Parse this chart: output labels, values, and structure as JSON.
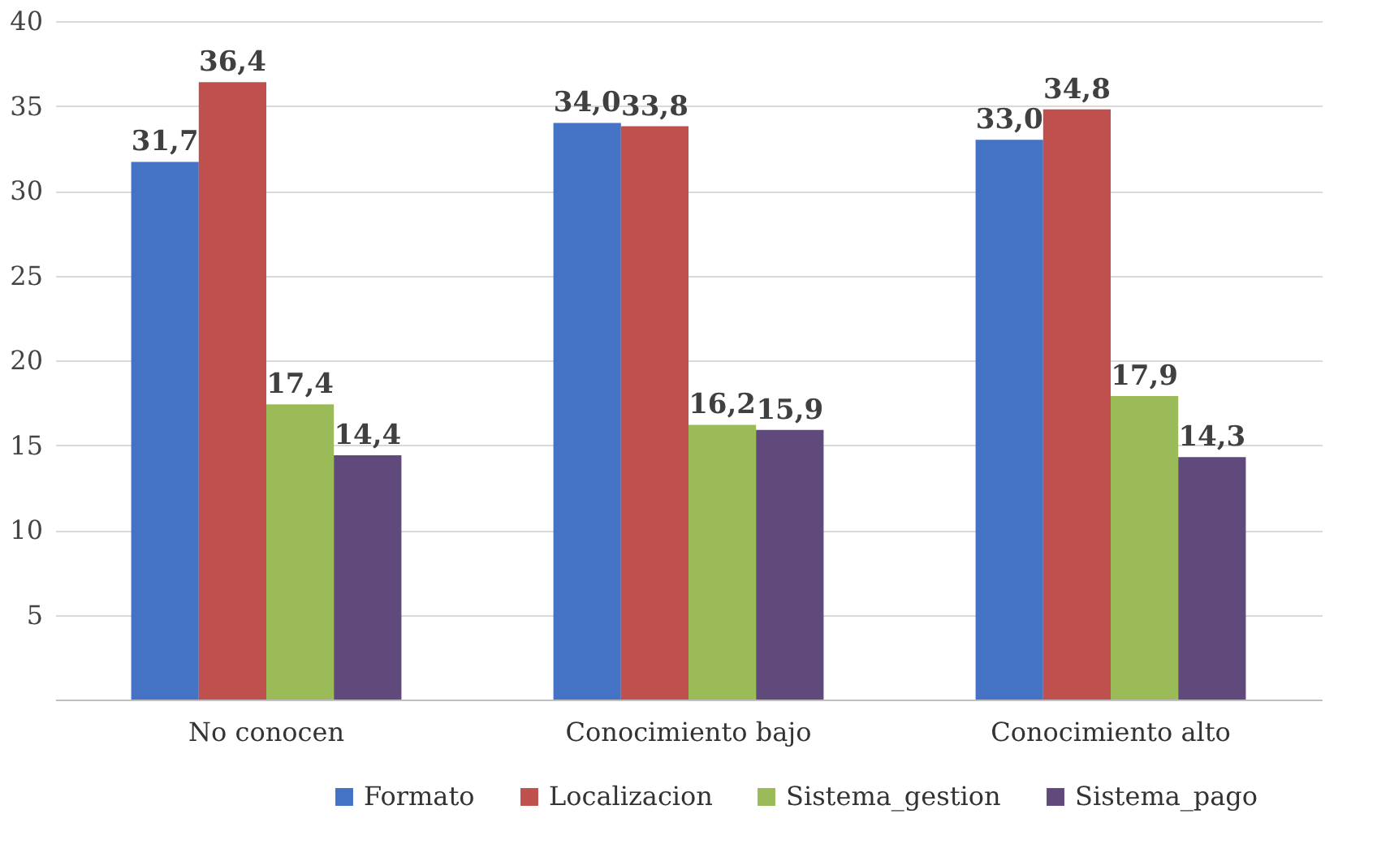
{
  "chart_data": {
    "type": "bar",
    "categories": [
      "No conocen",
      "Conocimiento bajo",
      "Conocimiento alto"
    ],
    "series": [
      {
        "name": "Formato",
        "color": "#4472c4",
        "values": [
          31.7,
          34.0,
          33.0
        ],
        "value_labels": [
          "31,7",
          "34,0",
          "33,0"
        ]
      },
      {
        "name": "Localizacion",
        "color": "#c0504d",
        "values": [
          36.4,
          33.8,
          34.8
        ],
        "value_labels": [
          "36,4",
          "33,8",
          "34,8"
        ]
      },
      {
        "name": "Sistema_gestion",
        "color": "#9bbb59",
        "values": [
          17.4,
          16.2,
          17.9
        ],
        "value_labels": [
          "17,4",
          "16,2",
          "17,9"
        ]
      },
      {
        "name": "Sistema_pago",
        "color": "#604a7b",
        "values": [
          14.4,
          15.9,
          14.3
        ],
        "value_labels": [
          "14,4",
          "15,9",
          "14,3"
        ]
      }
    ],
    "ylim": [
      0,
      40
    ],
    "yticks": [
      5,
      10,
      15,
      20,
      25,
      30,
      35,
      40
    ],
    "grid": "y",
    "legend": "bottom"
  }
}
